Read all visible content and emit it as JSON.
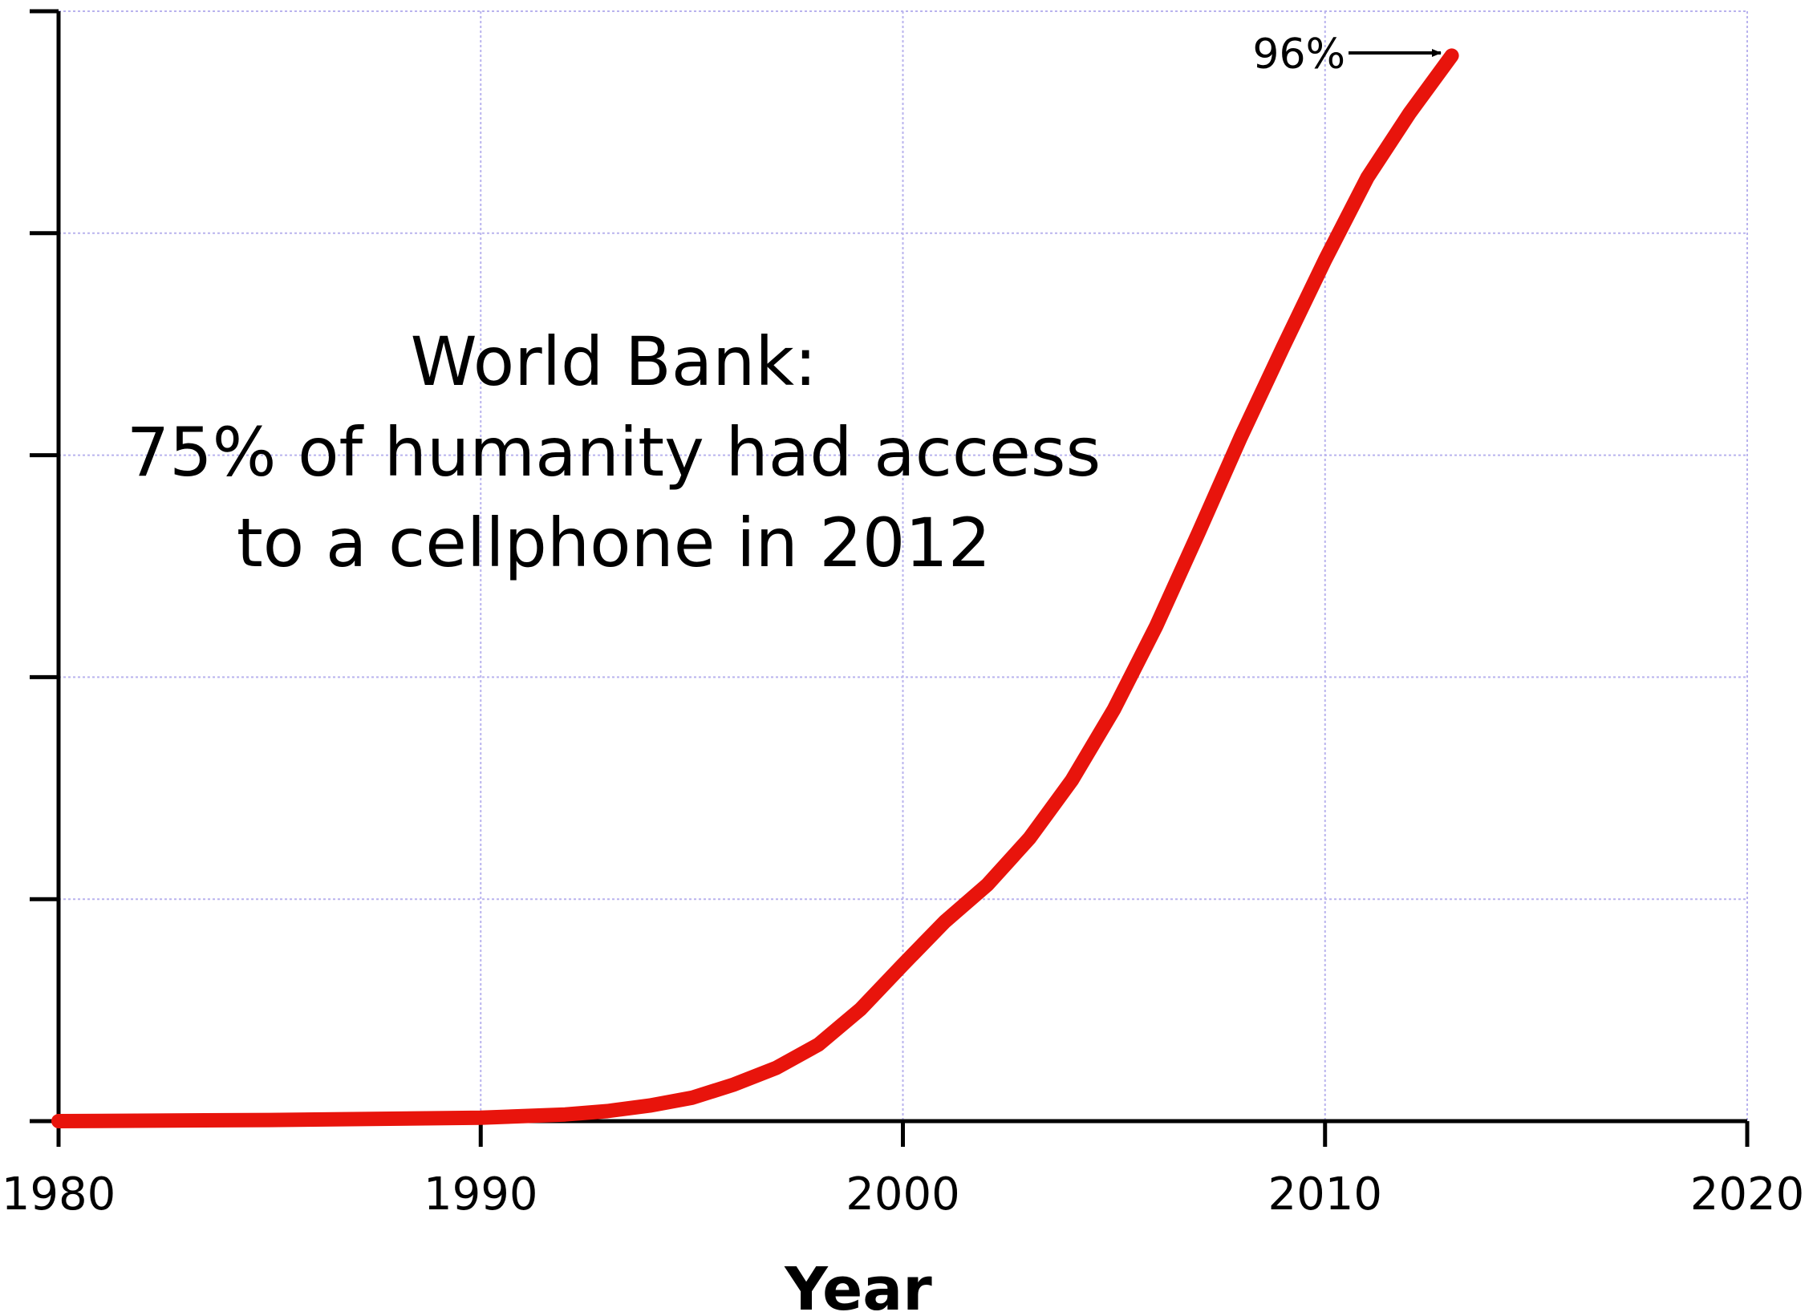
{
  "chart_data": {
    "type": "line",
    "title": "",
    "xlabel": "Year",
    "ylabel": "",
    "xlim": [
      1980,
      2020
    ],
    "ylim": [
      0,
      100
    ],
    "x_ticks": [
      1980,
      1990,
      2000,
      2010,
      2020
    ],
    "x_tick_labels": [
      "1980",
      "1990",
      "2000",
      "2010",
      "2020"
    ],
    "y_ticks": [
      0,
      20,
      40,
      60,
      80,
      100
    ],
    "grid": true,
    "line_color": "#e8140c",
    "series": [
      {
        "x": [
          1980,
          1985,
          1990,
          1992,
          1993,
          1994,
          1995,
          1996,
          1997,
          1998,
          1999,
          2000,
          2001,
          2002,
          2003,
          2004,
          2005,
          2006,
          2007,
          2008,
          2009,
          2010,
          2011,
          2012,
          2013
        ],
        "values": [
          0,
          0.1,
          0.3,
          0.6,
          0.9,
          1.4,
          2.1,
          3.3,
          4.8,
          6.9,
          10.1,
          14.1,
          18.0,
          21.3,
          25.5,
          30.7,
          37.1,
          44.6,
          53.0,
          61.6,
          69.7,
          77.6,
          85.0,
          90.8,
          96.0
        ]
      }
    ],
    "annotations": {
      "body_lines": [
        "World Bank:",
        "75% of humanity had access",
        "to a cellphone in 2012"
      ],
      "callout": "96%"
    }
  }
}
